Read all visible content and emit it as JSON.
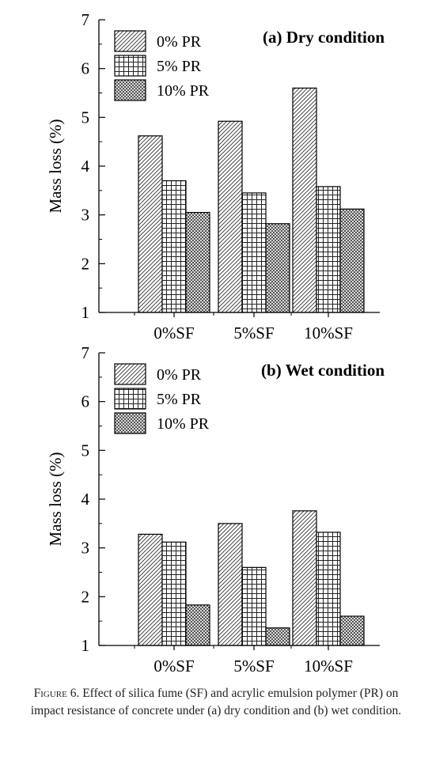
{
  "chart_data": [
    {
      "type": "bar",
      "title": "(a) Dry condition",
      "xlabel": "",
      "ylabel": "Mass loss (%)",
      "ylim": [
        1,
        7
      ],
      "yticks": [
        1,
        2,
        3,
        4,
        5,
        6,
        7
      ],
      "categories": [
        "0%SF",
        "5%SF",
        "10%SF"
      ],
      "legend_position": "top-left",
      "series": [
        {
          "name": "0% PR",
          "pattern": "diagonal-hatch",
          "values": [
            4.62,
            4.92,
            5.6
          ]
        },
        {
          "name": "5% PR",
          "pattern": "grid-hatch",
          "values": [
            3.7,
            3.45,
            3.58
          ]
        },
        {
          "name": "10% PR",
          "pattern": "crosshatch",
          "values": [
            3.05,
            2.82,
            3.12
          ]
        }
      ]
    },
    {
      "type": "bar",
      "title": "(b) Wet condition",
      "xlabel": "",
      "ylabel": "Mass loss (%)",
      "ylim": [
        1,
        7
      ],
      "yticks": [
        1,
        2,
        3,
        4,
        5,
        6,
        7
      ],
      "categories": [
        "0%SF",
        "5%SF",
        "10%SF"
      ],
      "legend_position": "top-left",
      "series": [
        {
          "name": "0% PR",
          "pattern": "diagonal-hatch",
          "values": [
            3.28,
            3.5,
            3.76
          ]
        },
        {
          "name": "5% PR",
          "pattern": "grid-hatch",
          "values": [
            3.12,
            2.6,
            3.32
          ]
        },
        {
          "name": "10% PR",
          "pattern": "crosshatch",
          "values": [
            1.83,
            1.36,
            1.6
          ]
        }
      ]
    }
  ],
  "caption": {
    "label": "Figure 6.",
    "text": "Effect of silica fume (SF) and acrylic emulsion polymer (PR) on impact resistance of concrete under (a) dry condition and (b) wet condition."
  }
}
